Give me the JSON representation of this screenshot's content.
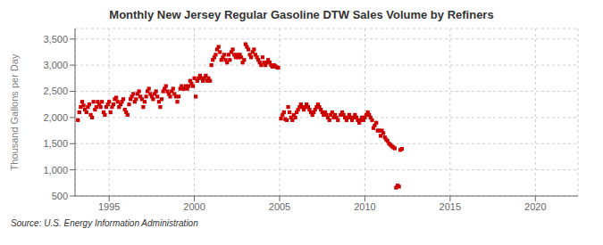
{
  "chart_data": {
    "type": "scatter",
    "title": "Monthly New Jersey Regular Gasoline DTW Sales Volume by Refiners",
    "ylabel": "Thousand Gallons per Day",
    "annotations": [
      "Source: U.S. Energy Information Administration"
    ],
    "color": "#cc0000",
    "marker": "square",
    "grid": true,
    "xlim": [
      1993.0,
      2022.5
    ],
    "ylim": [
      500,
      3700
    ],
    "xticks": [
      1995,
      2000,
      2005,
      2010,
      2015,
      2020
    ],
    "yticks": [
      500,
      {
        "value": 1000,
        "label": "1,000"
      },
      {
        "value": 1500,
        "label": "1,500"
      },
      {
        "value": 2000,
        "label": "2,000"
      },
      {
        "value": 2500,
        "label": "2,500"
      },
      {
        "value": 3000,
        "label": "3,000"
      },
      {
        "value": 3500,
        "label": "3,500"
      }
    ],
    "x": [
      1993.17,
      1993.25,
      1993.33,
      1993.42,
      1993.5,
      1993.58,
      1993.67,
      1993.75,
      1993.83,
      1993.92,
      1994.0,
      1994.08,
      1994.17,
      1994.25,
      1994.33,
      1994.42,
      1994.5,
      1994.58,
      1994.67,
      1994.75,
      1994.83,
      1994.92,
      1995.0,
      1995.08,
      1995.17,
      1995.25,
      1995.33,
      1995.42,
      1995.5,
      1995.58,
      1995.67,
      1995.75,
      1995.83,
      1995.92,
      1996.0,
      1996.08,
      1996.17,
      1996.25,
      1996.33,
      1996.42,
      1996.5,
      1996.58,
      1996.67,
      1996.75,
      1996.83,
      1996.92,
      1997.0,
      1997.08,
      1997.17,
      1997.25,
      1997.33,
      1997.42,
      1997.5,
      1997.58,
      1997.67,
      1997.75,
      1997.83,
      1997.92,
      1998.0,
      1998.08,
      1998.17,
      1998.25,
      1998.33,
      1998.42,
      1998.5,
      1998.58,
      1998.67,
      1998.75,
      1998.83,
      1998.92,
      1999.0,
      1999.08,
      1999.17,
      1999.25,
      1999.33,
      1999.42,
      1999.5,
      1999.58,
      1999.67,
      1999.75,
      1999.83,
      1999.92,
      2000.0,
      2000.08,
      2000.17,
      2000.25,
      2000.33,
      2000.42,
      2000.5,
      2000.58,
      2000.67,
      2000.75,
      2000.83,
      2000.92,
      2001.0,
      2001.08,
      2001.17,
      2001.25,
      2001.33,
      2001.42,
      2001.5,
      2001.58,
      2001.67,
      2001.75,
      2001.83,
      2001.92,
      2002.0,
      2002.08,
      2002.17,
      2002.25,
      2002.33,
      2002.42,
      2002.5,
      2002.58,
      2002.67,
      2002.75,
      2002.83,
      2002.92,
      2003.0,
      2003.08,
      2003.17,
      2003.25,
      2003.33,
      2003.42,
      2003.5,
      2003.58,
      2003.67,
      2003.75,
      2003.83,
      2003.92,
      2004.0,
      2004.08,
      2004.17,
      2004.25,
      2004.33,
      2004.42,
      2004.5,
      2004.58,
      2004.67,
      2004.75,
      2004.83,
      2004.92,
      2005.08,
      2005.17,
      2005.25,
      2005.33,
      2005.42,
      2005.5,
      2005.58,
      2005.67,
      2005.75,
      2005.83,
      2005.92,
      2006.0,
      2006.08,
      2006.17,
      2006.25,
      2006.33,
      2006.42,
      2006.5,
      2006.58,
      2006.67,
      2006.75,
      2006.83,
      2006.92,
      2007.0,
      2007.08,
      2007.17,
      2007.25,
      2007.33,
      2007.42,
      2007.5,
      2007.58,
      2007.67,
      2007.75,
      2007.83,
      2007.92,
      2008.0,
      2008.08,
      2008.17,
      2008.25,
      2008.33,
      2008.42,
      2008.58,
      2008.67,
      2008.75,
      2008.83,
      2008.92,
      2009.0,
      2009.08,
      2009.17,
      2009.25,
      2009.33,
      2009.42,
      2009.5,
      2009.58,
      2009.67,
      2009.75,
      2009.83,
      2009.92,
      2010.0,
      2010.08,
      2010.17,
      2010.25,
      2010.33,
      2010.42,
      2010.5,
      2010.58,
      2010.67,
      2010.75,
      2010.83,
      2010.92,
      2011.0,
      2011.08,
      2011.17,
      2011.25,
      2011.33,
      2011.42,
      2011.5,
      2011.58,
      2011.67,
      2011.75,
      2011.83,
      2011.92,
      2012.0,
      2012.08,
      2012.17
    ],
    "values": [
      1950,
      2100,
      2200,
      2300,
      2230,
      2150,
      2100,
      2200,
      2250,
      2050,
      2000,
      2300,
      2150,
      2200,
      2300,
      2250,
      2200,
      2300,
      2100,
      2050,
      2200,
      2250,
      2300,
      2100,
      2200,
      2250,
      2350,
      2380,
      2300,
      2200,
      2250,
      2300,
      2350,
      2150,
      2100,
      2050,
      2250,
      2350,
      2400,
      2450,
      2300,
      2350,
      2450,
      2500,
      2400,
      2350,
      2200,
      2300,
      2400,
      2500,
      2550,
      2450,
      2400,
      2350,
      2450,
      2500,
      2400,
      2300,
      2200,
      2350,
      2500,
      2550,
      2600,
      2500,
      2450,
      2400,
      2500,
      2550,
      2450,
      2400,
      2300,
      2400,
      2550,
      2600,
      2550,
      2550,
      2600,
      2550,
      2600,
      2700,
      2650,
      2600,
      2750,
      2400,
      2700,
      2750,
      2800,
      2750,
      2700,
      2750,
      2800,
      2700,
      2750,
      2700,
      3000,
      3100,
      3150,
      3200,
      3300,
      3350,
      3250,
      3100,
      3150,
      3200,
      3100,
      3050,
      3200,
      3100,
      3250,
      3300,
      3200,
      3150,
      3200,
      3150,
      3200,
      3150,
      3050,
      3100,
      3400,
      3350,
      3300,
      3200,
      3150,
      3250,
      3300,
      3200,
      3150,
      3100,
      3050,
      3000,
      3150,
      3050,
      3000,
      3050,
      3100,
      3050,
      3000,
      2970,
      3000,
      2980,
      2960,
      2950,
      1980,
      2050,
      2100,
      1970,
      1950,
      2200,
      2100,
      2000,
      1950,
      2050,
      2000,
      2100,
      2150,
      2200,
      2250,
      2200,
      2150,
      2200,
      2250,
      2200,
      2150,
      2100,
      2050,
      2100,
      2150,
      2200,
      2250,
      2200,
      2150,
      2100,
      2050,
      2100,
      2050,
      2000,
      1950,
      2050,
      2100,
      2000,
      2050,
      2000,
      1950,
      2050,
      2100,
      2050,
      2000,
      1950,
      2000,
      2050,
      2000,
      1950,
      2000,
      2050,
      2000,
      1950,
      1900,
      1950,
      2000,
      1950,
      2000,
      2050,
      2100,
      2050,
      2000,
      1950,
      1800,
      1850,
      1900,
      1750,
      1750,
      1650,
      1750,
      1700,
      1620,
      1580,
      1550,
      1500,
      1480,
      1450,
      1430,
      1410,
      660,
      700,
      680,
      1380,
      1400
    ]
  }
}
